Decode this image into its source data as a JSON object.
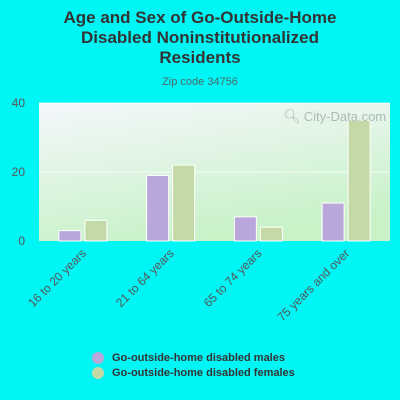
{
  "chart_data": {
    "type": "bar",
    "title": [
      "Age and Sex of Go-Outside-Home",
      "Disabled Noninstitutionalized",
      "Residents"
    ],
    "subtitle": "Zip code 34756",
    "categories": [
      "16 to 20 years",
      "21 to 64 years",
      "65 to 74 years",
      "75 years and over"
    ],
    "series": [
      {
        "name": "Go-outside-home disabled males",
        "values": [
          3,
          19,
          7,
          11
        ],
        "color": "#b9a7db"
      },
      {
        "name": "Go-outside-home disabled females",
        "values": [
          6,
          22,
          4,
          35
        ],
        "color": "#c4daa6"
      }
    ],
    "y_ticks": [
      "0",
      "20",
      "40"
    ],
    "ylim": [
      0,
      40
    ],
    "grid": true,
    "legend_position": "bottom",
    "watermark": "City-Data.com"
  },
  "colors": {
    "background": "#00f5f5",
    "plot_top": "#f4f7fb",
    "plot_bottom": "#c9f2c9"
  }
}
